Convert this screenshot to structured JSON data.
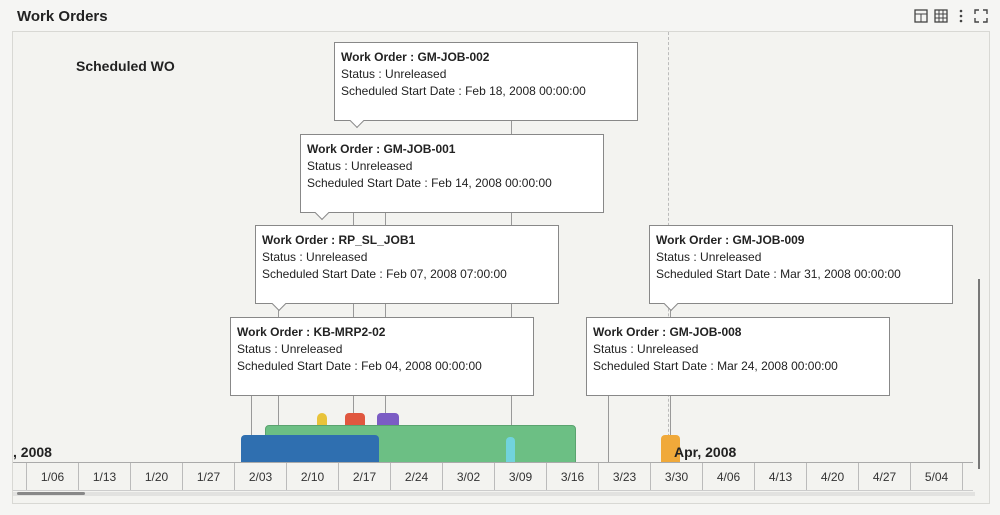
{
  "header": {
    "title": "Work Orders"
  },
  "icons": {
    "toolbar": [
      "layout-icon",
      "grid-icon",
      "more-icon",
      "fullscreen-icon"
    ]
  },
  "timeline": {
    "row_label": "Scheduled WO",
    "left_date": ", 2008",
    "right_date": "Apr, 2008",
    "axis_ticks": [
      "1/06",
      "1/13",
      "1/20",
      "1/27",
      "2/03",
      "2/10",
      "2/17",
      "2/24",
      "3/02",
      "3/09",
      "3/16",
      "3/23",
      "3/30",
      "4/06",
      "4/13",
      "4/20",
      "4/27",
      "5/04"
    ]
  },
  "cards": [
    {
      "wo": "Work Order : GM-JOB-002",
      "status": "Status : Unreleased",
      "date": "Scheduled Start Date : Feb 18, 2008 00:00:00"
    },
    {
      "wo": "Work Order : GM-JOB-001",
      "status": "Status : Unreleased",
      "date": "Scheduled Start Date : Feb 14, 2008 00:00:00"
    },
    {
      "wo": "Work Order : RP_SL_JOB1",
      "status": "Status : Unreleased",
      "date": "Scheduled Start Date : Feb 07, 2008 07:00:00"
    },
    {
      "wo": "Work Order : GM-JOB-009",
      "status": "Status : Unreleased",
      "date": "Scheduled Start Date : Mar 31, 2008 00:00:00"
    },
    {
      "wo": "Work Order : KB-MRP2-02",
      "status": "Status : Unreleased",
      "date": "Scheduled Start Date : Feb 04, 2008 00:00:00"
    },
    {
      "wo": "Work Order : GM-JOB-008",
      "status": "Status : Unreleased",
      "date": "Scheduled Start Date : Mar 24, 2008 00:00:00"
    }
  ],
  "colors": {
    "green": "#6cbf84",
    "blue": "#2f6fb0",
    "yellow": "#e8c33a",
    "red": "#e0573f",
    "purple": "#7b5cc4",
    "cyan": "#71d3dc",
    "orange": "#f0a93a"
  }
}
